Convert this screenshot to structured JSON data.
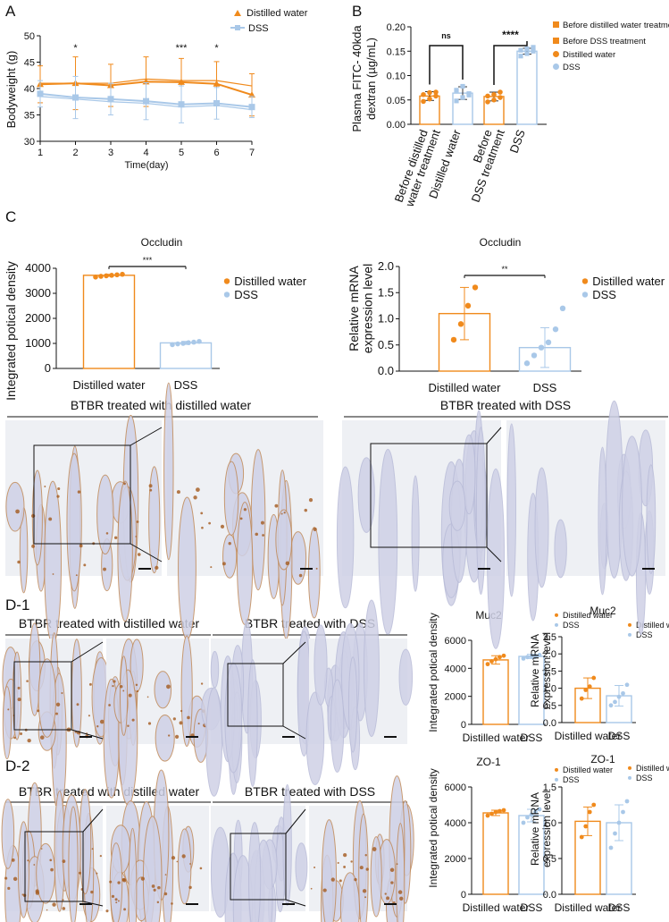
{
  "colors": {
    "orange": "#F08A1C",
    "blue": "#A9C8E8",
    "tissue": "#dcdcec",
    "stain": "#b56a2c"
  },
  "panel_letters": {
    "a": "A",
    "b": "B",
    "c": "C",
    "d1": "D-1",
    "d2": "D-2"
  },
  "chart_data": [
    {
      "id": "A",
      "type": "line",
      "ylabel": "Bodyweight (g)",
      "xlabel": "Time(day)",
      "x": [
        1,
        2,
        3,
        4,
        5,
        6,
        7
      ],
      "xlim": [
        1,
        7
      ],
      "ylim": [
        30,
        50
      ],
      "yticks": [
        30,
        35,
        40,
        45,
        50
      ],
      "series": [
        {
          "name": "Distilled water",
          "color": "#F08A1C",
          "marker": "triangle",
          "values": [
            40.8,
            41.0,
            40.6,
            41.3,
            41.2,
            40.9,
            38.8
          ],
          "errors": [
            3.5,
            5.0,
            4.0,
            4.7,
            4.5,
            4.2,
            4.0
          ]
        },
        {
          "name": "DSS",
          "color": "#A9C8E8",
          "marker": "square",
          "values": [
            39.0,
            38.3,
            38.0,
            37.6,
            37.0,
            37.2,
            36.5
          ],
          "errors": [
            2.5,
            4.0,
            3.0,
            3.5,
            3.5,
            3.0,
            2.0
          ]
        }
      ],
      "extra_lines": [
        [
          41.0,
          41.0,
          41.0,
          41.8,
          41.5,
          41.5,
          40.5
        ],
        [
          38.5,
          38.0,
          37.5,
          37.2,
          36.5,
          36.8,
          36.0
        ]
      ],
      "annotations": [
        {
          "x": 2,
          "text": "*"
        },
        {
          "x": 5,
          "text": "***"
        },
        {
          "x": 6,
          "text": "*"
        }
      ]
    },
    {
      "id": "B",
      "type": "bar",
      "ylabel_lines": [
        "Plasma FITC- 40kda",
        "dextran (µg/mL)"
      ],
      "categories": [
        [
          "Before distilled",
          "water treatment"
        ],
        [
          "Distilled water"
        ],
        [
          "Before",
          "DSS treatment"
        ],
        [
          "DSS"
        ]
      ],
      "values": [
        0.058,
        0.064,
        0.057,
        0.15
      ],
      "errors": [
        0.009,
        0.013,
        0.009,
        0.006
      ],
      "points": [
        [
          0.047,
          0.052,
          0.058,
          0.061,
          0.065,
          0.066
        ],
        [
          0.048,
          0.055,
          0.063,
          0.07,
          0.078,
          0.06
        ],
        [
          0.046,
          0.05,
          0.055,
          0.058,
          0.061,
          0.066
        ],
        [
          0.14,
          0.145,
          0.15,
          0.152,
          0.155,
          0.158
        ]
      ],
      "colors": [
        "#F08A1C",
        "#A9C8E8",
        "#F08A1C",
        "#A9C8E8"
      ],
      "ylim": [
        0,
        0.2
      ],
      "yticks": [
        "0.00",
        "0.05",
        "0.10",
        "0.15",
        "0.20"
      ],
      "legend": [
        "Before distilled water treatment",
        "Before DSS treatment",
        "Distilled water",
        "DSS"
      ],
      "sig": [
        {
          "a": 0,
          "b": 1,
          "text": "ns"
        },
        {
          "a": 2,
          "b": 3,
          "text": "****"
        }
      ]
    },
    {
      "id": "C1",
      "type": "bar",
      "title": "Occludin",
      "ylabel": "Integrated potical density",
      "categories": [
        "Distilled water",
        "DSS"
      ],
      "values": [
        3720,
        1020
      ],
      "errors": [
        40,
        60
      ],
      "points": [
        [
          3650,
          3680,
          3700,
          3720,
          3740,
          3760
        ],
        [
          950,
          980,
          1000,
          1030,
          1050,
          1080
        ]
      ],
      "ylim": [
        0,
        4000
      ],
      "yticks": [
        "0",
        "1000",
        "2000",
        "3000",
        "4000"
      ],
      "legend": [
        "Distilled water",
        "DSS"
      ],
      "sig": "***"
    },
    {
      "id": "C2",
      "type": "bar",
      "title": "Occludin",
      "ylabel_lines": [
        "Relative mRNA",
        "expression level"
      ],
      "categories": [
        "Distilled water",
        "DSS"
      ],
      "values": [
        1.1,
        0.45
      ],
      "errors": [
        0.5,
        0.38
      ],
      "points": [
        [
          0.6,
          0.9,
          1.25,
          1.6
        ],
        [
          0.15,
          0.3,
          0.45,
          0.55,
          0.8,
          1.2
        ]
      ],
      "ylim": [
        0,
        2.0
      ],
      "yticks": [
        "0.0",
        "0.5",
        "1.0",
        "1.5",
        "2.0"
      ],
      "legend": [
        "Distilled water",
        "DSS"
      ],
      "sig": "**"
    },
    {
      "id": "D1a",
      "type": "bar",
      "title": "Muc2",
      "ylabel": "Integrated potical density",
      "categories": [
        "Distilled water",
        "DSS"
      ],
      "values": [
        4600,
        4850
      ],
      "errors": [
        300,
        150
      ],
      "points": [
        [
          4300,
          4500,
          4650,
          4800,
          4900
        ],
        [
          4700,
          4800,
          4850,
          4900,
          4950
        ]
      ],
      "ylim": [
        0,
        6000
      ],
      "yticks": [
        "0",
        "2000",
        "4000",
        "6000"
      ],
      "legend": [
        "Distilled water",
        "DSS"
      ]
    },
    {
      "id": "D1b",
      "type": "bar",
      "title": "Muc2",
      "ylabel_lines": [
        "Relative mRNA",
        "expression level"
      ],
      "categories": [
        "Distilled water",
        "DSS"
      ],
      "values": [
        1.0,
        0.78
      ],
      "errors": [
        0.3,
        0.3
      ],
      "points": [
        [
          0.7,
          0.95,
          1.05,
          1.3
        ],
        [
          0.5,
          0.6,
          0.75,
          0.85,
          1.1
        ]
      ],
      "ylim": [
        0,
        2.5
      ],
      "yticks": [
        "0.0",
        "0.5",
        "1.0",
        "1.5",
        "2.0",
        "2.5"
      ],
      "legend": [
        "Distilled water",
        "DSS"
      ]
    },
    {
      "id": "D2a",
      "type": "bar",
      "title": "ZO-1",
      "ylabel": "Integrated potical density",
      "categories": [
        "Distilled water",
        "DSS"
      ],
      "values": [
        4550,
        4400
      ],
      "errors": [
        150,
        350
      ],
      "points": [
        [
          4400,
          4500,
          4600,
          4650,
          4700
        ],
        [
          4000,
          4300,
          4450,
          4600,
          4750
        ]
      ],
      "ylim": [
        0,
        6000
      ],
      "yticks": [
        "0",
        "2000",
        "4000",
        "6000"
      ],
      "legend": [
        "Distilled water",
        "DSS"
      ]
    },
    {
      "id": "D2b",
      "type": "bar",
      "title": "ZO-1",
      "ylabel_lines": [
        "Relative mRNA",
        "expression level"
      ],
      "categories": [
        "Distilled water",
        "DSS"
      ],
      "values": [
        1.02,
        1.0
      ],
      "errors": [
        0.2,
        0.25
      ],
      "points": [
        [
          0.8,
          0.95,
          1.15,
          1.25
        ],
        [
          0.65,
          0.85,
          1.0,
          1.15,
          1.3
        ]
      ],
      "ylim": [
        0,
        1.5
      ],
      "yticks": [
        "0.0",
        "0.5",
        "1.0",
        "1.5"
      ],
      "legend": [
        "Distilled water",
        "DSS"
      ]
    }
  ],
  "histology": {
    "c_left": "BTBR  treated with distilled water",
    "c_right": "BTBR  treated with DSS",
    "d1_left": "BTBR  treated with distilled water",
    "d1_right": "BTBR  treated with DSS",
    "d2_left": "BTBR  treated with distilled water",
    "d2_right": "BTBR  treated with DSS"
  }
}
